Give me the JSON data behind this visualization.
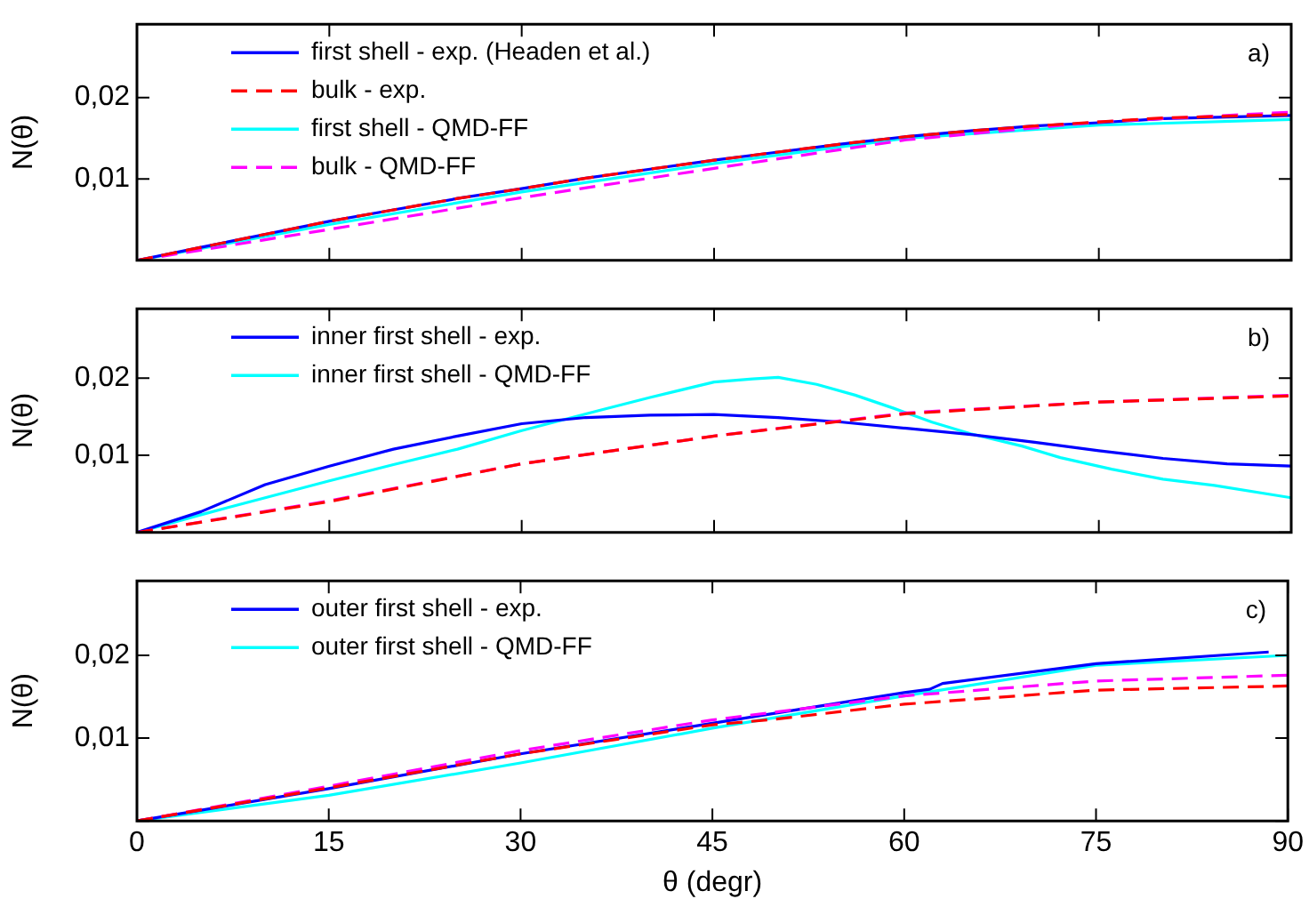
{
  "chart_data": [
    {
      "type": "line",
      "ylabel": "N(θ)",
      "xlim": [
        0,
        90
      ],
      "xticks": [
        0,
        15,
        30,
        45,
        60,
        75,
        90
      ],
      "ylim": [
        0,
        0.029
      ],
      "yticks": [
        {
          "value": 0,
          "label": null
        },
        {
          "value": 0.01,
          "label": "0,01"
        },
        {
          "value": 0.02,
          "label": "0,02"
        }
      ],
      "tick_labels": "y",
      "grid": false,
      "legend": "top left",
      "marker": "none",
      "annotations": [
        "a)"
      ],
      "series": [
        {
          "name": "first shell - exp. (Headen et al.)",
          "color": "#0000ff",
          "line_style": "solid",
          "x": [
            0,
            5,
            10,
            15,
            20,
            25,
            30,
            35,
            40,
            45,
            50,
            55,
            60,
            65,
            70,
            75,
            80,
            85,
            90
          ],
          "values": [
            0,
            0.0016,
            0.0032,
            0.0048,
            0.0062,
            0.0076,
            0.0088,
            0.0101,
            0.0112,
            0.0123,
            0.0133,
            0.0143,
            0.0152,
            0.0159,
            0.0165,
            0.0169,
            0.0174,
            0.0176,
            0.0178
          ]
        },
        {
          "name": "bulk - exp.",
          "color": "#ff0000",
          "line_style": "dashed",
          "x": [
            0,
            5,
            10,
            15,
            20,
            25,
            30,
            35,
            40,
            45,
            50,
            55,
            60,
            65,
            70,
            75,
            80,
            85,
            90
          ],
          "values": [
            0,
            0.0016,
            0.0032,
            0.0048,
            0.0062,
            0.0076,
            0.0088,
            0.0101,
            0.0112,
            0.0123,
            0.0133,
            0.0143,
            0.0152,
            0.0159,
            0.0165,
            0.017,
            0.0175,
            0.0177,
            0.0179
          ]
        },
        {
          "name": "first shell - QMD-FF",
          "color": "#00ffff",
          "line_style": "solid",
          "x": [
            0,
            15,
            30,
            45,
            60,
            75,
            90
          ],
          "values": [
            0,
            0.0044,
            0.0084,
            0.0119,
            0.015,
            0.0166,
            0.0173
          ]
        },
        {
          "name": "bulk - QMD-FF",
          "color": "#ff00ff",
          "line_style": "dashed",
          "x": [
            0,
            15,
            30,
            45,
            60,
            75,
            90
          ],
          "values": [
            0,
            0.0038,
            0.0077,
            0.0113,
            0.0148,
            0.017,
            0.0182
          ]
        }
      ]
    },
    {
      "type": "line",
      "ylabel": "N(θ)",
      "xlim": [
        0,
        90
      ],
      "xticks": [
        0,
        15,
        30,
        45,
        60,
        75,
        90
      ],
      "ylim": [
        0,
        0.029
      ],
      "yticks": [
        {
          "value": 0,
          "label": null
        },
        {
          "value": 0.01,
          "label": "0,01"
        },
        {
          "value": 0.02,
          "label": "0,02"
        }
      ],
      "tick_labels": "y",
      "grid": false,
      "legend": "top left",
      "marker": "none",
      "annotations": [
        "b)"
      ],
      "series": [
        {
          "name": "inner first shell - exp.",
          "color": "#0000ff",
          "line_style": "solid",
          "x": [
            0,
            5,
            10,
            15,
            20,
            25,
            30,
            35,
            40,
            45,
            50,
            55,
            60,
            65,
            70,
            75,
            80,
            85,
            90
          ],
          "values": [
            0,
            0.0027,
            0.0062,
            0.0086,
            0.0108,
            0.0125,
            0.0141,
            0.0149,
            0.0152,
            0.0153,
            0.0149,
            0.0143,
            0.0135,
            0.0127,
            0.0117,
            0.0106,
            0.0096,
            0.0089,
            0.0086
          ]
        },
        {
          "name": "inner first shell - QMD-FF",
          "color": "#00ffff",
          "line_style": "solid",
          "x": [
            0,
            5,
            10,
            15,
            20,
            25,
            30,
            33,
            36,
            40,
            45,
            48,
            50,
            53,
            56,
            59,
            62,
            65,
            69,
            72,
            76,
            80,
            84,
            90
          ],
          "values": [
            0,
            0.0023,
            0.0045,
            0.0067,
            0.0088,
            0.0108,
            0.0132,
            0.0145,
            0.0158,
            0.0175,
            0.0195,
            0.0199,
            0.0201,
            0.0192,
            0.0178,
            0.0161,
            0.0143,
            0.0128,
            0.0112,
            0.0097,
            0.0082,
            0.0069,
            0.0061,
            0.0045
          ]
        },
        {
          "color": "#ff0000",
          "line_style": "dashed",
          "x": [
            0,
            15,
            30,
            45,
            60,
            75,
            90
          ],
          "values": [
            0,
            0.004,
            0.0089,
            0.0125,
            0.0154,
            0.0169,
            0.0177
          ]
        },
        {
          "color": "#ff00ff",
          "line_style": "dashed",
          "x": [
            0,
            15,
            30,
            45,
            60,
            75,
            90
          ],
          "values": [
            0,
            0.0041,
            0.0089,
            0.0125,
            0.0155,
            0.0169,
            0.0178
          ]
        }
      ]
    },
    {
      "type": "line",
      "xlabel": "θ (degr)",
      "ylabel": "N(θ)",
      "xlim": [
        0,
        90
      ],
      "xticks": [
        0,
        15,
        30,
        45,
        60,
        75,
        90
      ],
      "ylim": [
        0,
        0.029
      ],
      "yticks": [
        {
          "value": 0,
          "label": null
        },
        {
          "value": 0.01,
          "label": "0,01"
        },
        {
          "value": 0.02,
          "label": "0,02"
        }
      ],
      "grid": false,
      "legend": "top left",
      "marker": "none",
      "annotations": [
        "c)"
      ],
      "series": [
        {
          "name": "outer first shell - exp.",
          "color": "#0000ff",
          "line_style": "solid",
          "x": [
            0,
            15,
            30,
            45,
            60,
            62,
            63,
            75,
            88.5
          ],
          "values": [
            0,
            0.0039,
            0.0081,
            0.0118,
            0.0155,
            0.0159,
            0.0166,
            0.019,
            0.0204
          ]
        },
        {
          "name": "outer first shell - QMD-FF",
          "color": "#00ffff",
          "line_style": "solid",
          "x": [
            0,
            15,
            30,
            45,
            60,
            75,
            90
          ],
          "values": [
            0,
            0.0031,
            0.007,
            0.0112,
            0.0151,
            0.0188,
            0.02
          ]
        },
        {
          "color": "#ff0000",
          "line_style": "dashed",
          "x": [
            0,
            15,
            30,
            45,
            50,
            60,
            75,
            90
          ],
          "values": [
            0,
            0.004,
            0.0081,
            0.0116,
            0.0123,
            0.0141,
            0.0158,
            0.0163
          ]
        },
        {
          "color": "#ff00ff",
          "line_style": "dashed",
          "x": [
            0,
            15,
            30,
            45,
            60,
            75,
            90
          ],
          "values": [
            0,
            0.0042,
            0.0085,
            0.0122,
            0.0151,
            0.0169,
            0.0176
          ]
        }
      ]
    }
  ]
}
